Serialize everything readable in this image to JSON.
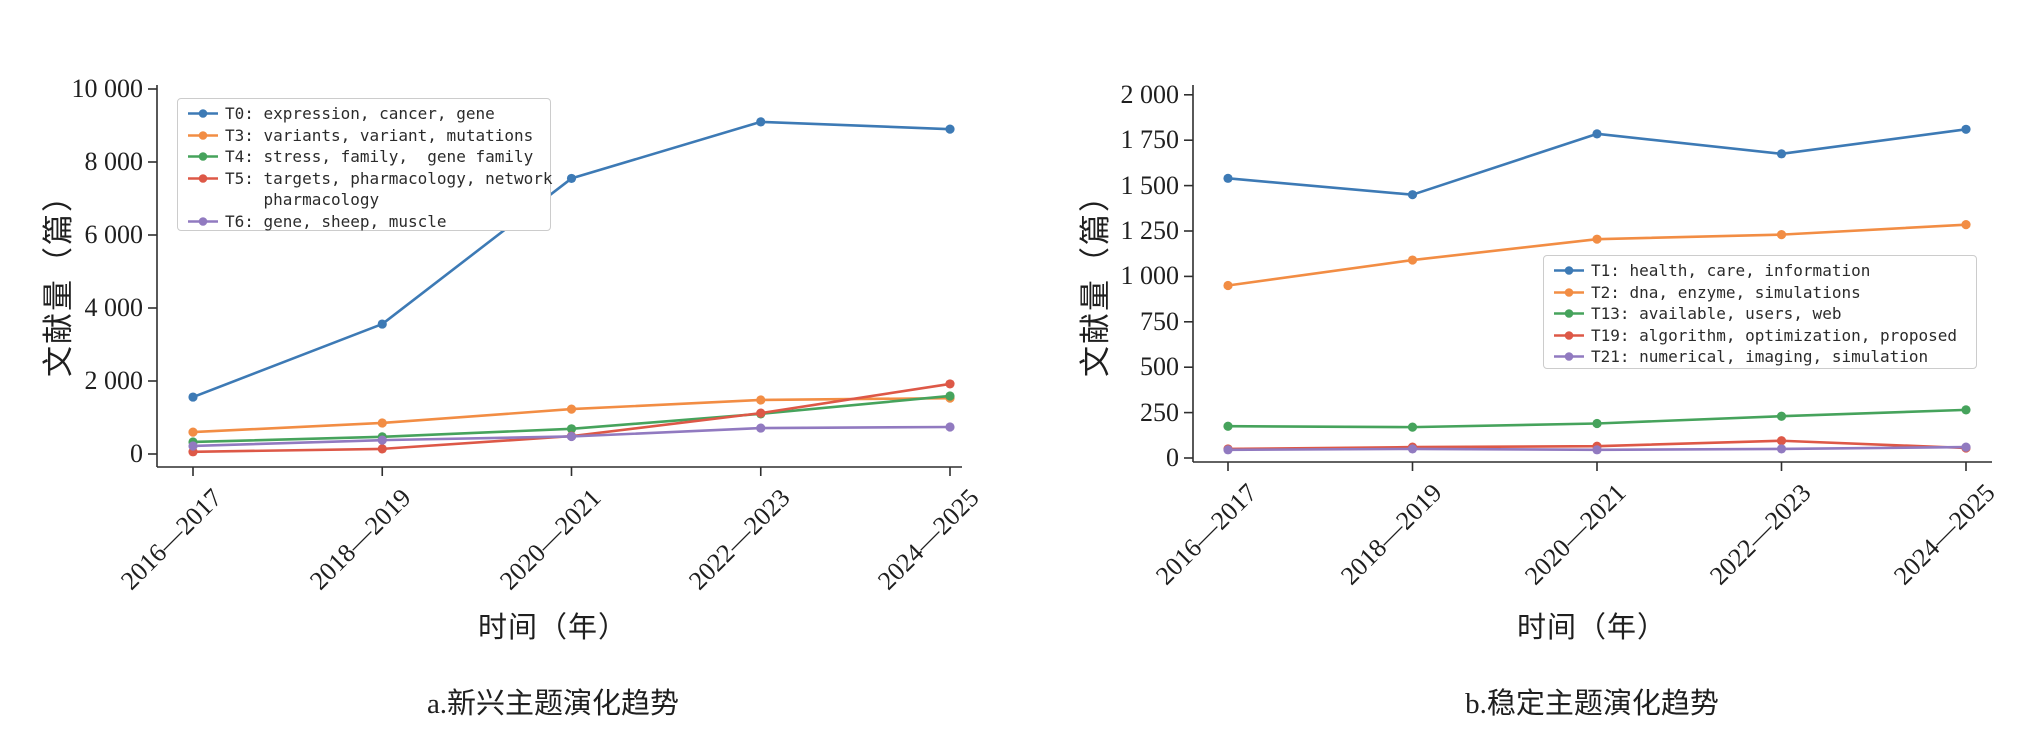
{
  "chart_data": [
    {
      "type": "line",
      "panel": "a",
      "caption": "a.新兴主题演化趋势",
      "xlabel": "时间（年）",
      "ylabel": "文献量（篇）",
      "categories": [
        "2016—2017",
        "2018—2019",
        "2020—2021",
        "2022—2023",
        "2024—2025"
      ],
      "y_ticks": {
        "values": [
          0,
          2000,
          4000,
          6000,
          8000,
          10000
        ],
        "labels": [
          "0",
          "2 000",
          "4 000",
          "6 000",
          "8 000",
          "10 000"
        ]
      },
      "ylim": [
        0,
        10000
      ],
      "grid": false,
      "legend_position": "upper-left",
      "series": [
        {
          "name": "T0",
          "keywords": "expression, cancer, gene",
          "color": "#3d7ab5",
          "legend_lines": [
            "T0: expression, cancer, gene"
          ],
          "values": [
            1560,
            3560,
            7550,
            9100,
            8900
          ]
        },
        {
          "name": "T3",
          "keywords": "variants, variant, mutations",
          "color": "#f28d44",
          "legend_lines": [
            "T3: variants, variant, mutations"
          ],
          "values": [
            600,
            850,
            1230,
            1480,
            1530
          ]
        },
        {
          "name": "T4",
          "keywords": "stress, family, gene family",
          "color": "#46a35c",
          "legend_lines": [
            "T4: stress, family,  gene family"
          ],
          "values": [
            330,
            470,
            690,
            1100,
            1590
          ]
        },
        {
          "name": "T5",
          "keywords": "targets, pharmacology, network pharmacology",
          "color": "#dd5847",
          "legend_lines": [
            "T5: targets, pharmacology, network",
            "    pharmacology"
          ],
          "values": [
            60,
            140,
            490,
            1120,
            1920
          ]
        },
        {
          "name": "T6",
          "keywords": "gene, sheep, muscle",
          "color": "#917ac0",
          "legend_lines": [
            "T6: gene, sheep, muscle"
          ],
          "values": [
            220,
            380,
            480,
            710,
            740
          ]
        }
      ]
    },
    {
      "type": "line",
      "panel": "b",
      "caption": "b.稳定主题演化趋势",
      "xlabel": "时间（年）",
      "ylabel": "文献量（篇）",
      "categories": [
        "2016—2017",
        "2018—2019",
        "2020—2021",
        "2022—2023",
        "2024—2025"
      ],
      "y_ticks": {
        "values": [
          0,
          250,
          500,
          750,
          1000,
          1250,
          1500,
          1750,
          2000
        ],
        "labels": [
          "0",
          "250",
          "500",
          "750",
          "1 000",
          "1 250",
          "1 500",
          "1 750",
          "2 000"
        ]
      },
      "ylim": [
        0,
        2000
      ],
      "grid": false,
      "legend_position": "middle-right",
      "series": [
        {
          "name": "T1",
          "keywords": "health, care, information",
          "color": "#3d7ab5",
          "legend_lines": [
            "T1: health, care, information"
          ],
          "values": [
            1540,
            1450,
            1785,
            1675,
            1810
          ]
        },
        {
          "name": "T2",
          "keywords": "dna, enzyme, simulations",
          "color": "#f28d44",
          "legend_lines": [
            "T2: dna, enzyme, simulations"
          ],
          "values": [
            950,
            1090,
            1205,
            1230,
            1285
          ]
        },
        {
          "name": "T13",
          "keywords": "available, users, web",
          "color": "#46a35c",
          "legend_lines": [
            "T13: available, users, web"
          ],
          "values": [
            175,
            170,
            190,
            230,
            265
          ]
        },
        {
          "name": "T19",
          "keywords": "algorithm, optimization, proposed",
          "color": "#dd5847",
          "legend_lines": [
            "T19: algorithm, optimization, proposed"
          ],
          "values": [
            50,
            60,
            65,
            95,
            55
          ]
        },
        {
          "name": "T21",
          "keywords": "numerical, imaging, simulation",
          "color": "#917ac0",
          "legend_lines": [
            "T21: numerical, imaging, simulation"
          ],
          "values": [
            45,
            50,
            45,
            50,
            60
          ]
        }
      ]
    }
  ]
}
